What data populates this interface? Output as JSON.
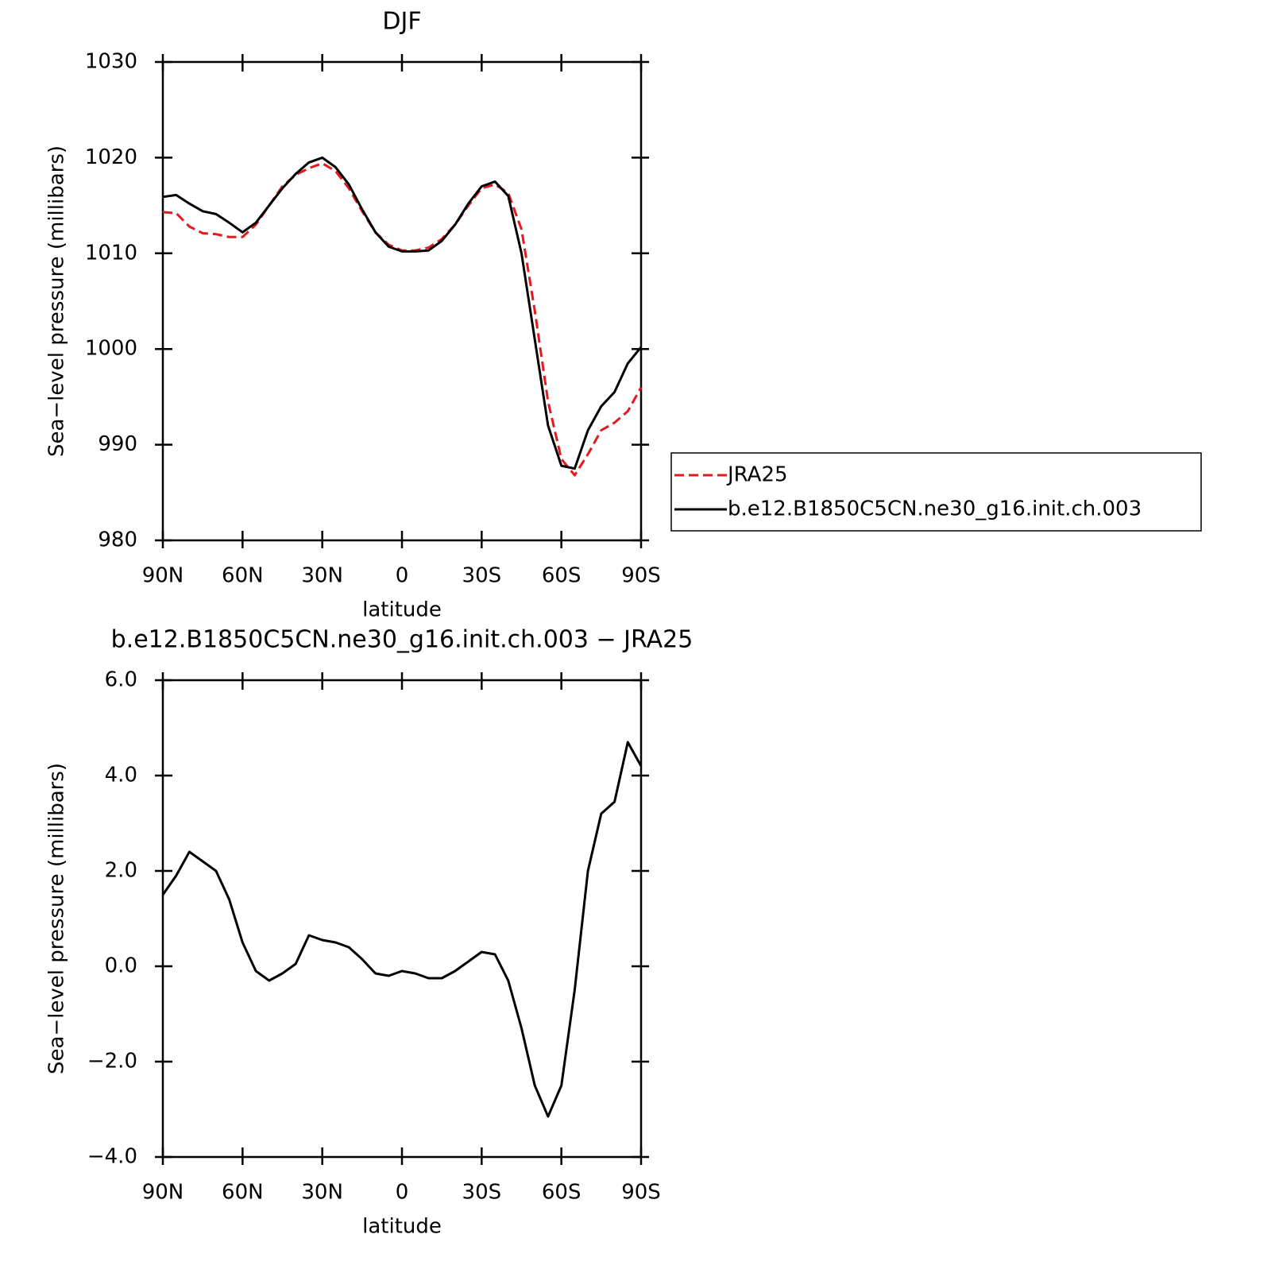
{
  "chart_data": [
    {
      "type": "line",
      "title": "DJF",
      "xlabel": "latitude",
      "ylabel": "Sea−level pressure (millibars)",
      "x": [
        90,
        85,
        80,
        75,
        70,
        65,
        60,
        55,
        50,
        45,
        40,
        35,
        30,
        25,
        20,
        15,
        10,
        5,
        0,
        -5,
        -10,
        -15,
        -20,
        -25,
        -30,
        -35,
        -40,
        -45,
        -50,
        -55,
        -60,
        -65,
        -70,
        -75,
        -80,
        -85,
        -90
      ],
      "series": [
        {
          "name": "JRA25",
          "color": "#e41a1c",
          "dashed": true,
          "values": [
            1014.3,
            1014.2,
            1012.8,
            1012.1,
            1012.0,
            1011.7,
            1011.7,
            1013.0,
            1015.0,
            1017.0,
            1018.2,
            1018.9,
            1019.4,
            1018.6,
            1016.8,
            1014.4,
            1012.2,
            1010.9,
            1010.3,
            1010.3,
            1010.6,
            1011.5,
            1013.0,
            1015.0,
            1016.8,
            1017.2,
            1016.3,
            1012.5,
            1004.0,
            994.5,
            988.5,
            986.8,
            989.0,
            991.5,
            992.3,
            993.5,
            996.0
          ]
        },
        {
          "name": "b.e12.B1850C5CN.ne30_g16.init.ch.003",
          "color": "#000000",
          "dashed": false,
          "values": [
            1015.9,
            1016.1,
            1015.2,
            1014.4,
            1014.1,
            1013.2,
            1012.2,
            1013.2,
            1015.0,
            1016.8,
            1018.3,
            1019.5,
            1020.0,
            1019.0,
            1017.2,
            1014.6,
            1012.2,
            1010.7,
            1010.2,
            1010.2,
            1010.3,
            1011.3,
            1013.0,
            1015.2,
            1017.0,
            1017.5,
            1016.0,
            1010.0,
            1001.0,
            992.0,
            987.8,
            987.5,
            991.5,
            994.0,
            995.5,
            998.5,
            1000.2
          ]
        }
      ],
      "xlim": [
        90,
        -90
      ],
      "xticks": [
        {
          "value": 90,
          "label": "90N"
        },
        {
          "value": 60,
          "label": "60N"
        },
        {
          "value": 30,
          "label": "30N"
        },
        0,
        {
          "value": -30,
          "label": "30S"
        },
        {
          "value": -60,
          "label": "60S"
        },
        {
          "value": -90,
          "label": "90S"
        }
      ],
      "ylim": [
        980,
        1030
      ],
      "yticks": [
        980,
        990,
        1000,
        1010,
        1020,
        1030
      ],
      "legend": "right"
    },
    {
      "type": "line",
      "title": "b.e12.B1850C5CN.ne30_g16.init.ch.003 − JRA25",
      "xlabel": "latitude",
      "ylabel": "Sea−level pressure (millibars)",
      "x": [
        90,
        85,
        80,
        75,
        70,
        65,
        60,
        55,
        50,
        45,
        40,
        35,
        30,
        25,
        20,
        15,
        10,
        5,
        0,
        -5,
        -10,
        -15,
        -20,
        -25,
        -30,
        -35,
        -40,
        -45,
        -50,
        -55,
        -60,
        -65,
        -70,
        -75,
        -80,
        -85,
        -90
      ],
      "series": [
        {
          "color": "#000000",
          "dashed": false,
          "values": [
            1.5,
            1.9,
            2.4,
            2.2,
            2.0,
            1.4,
            0.5,
            -0.1,
            -0.3,
            -0.15,
            0.05,
            0.65,
            0.55,
            0.5,
            0.4,
            0.15,
            -0.15,
            -0.2,
            -0.1,
            -0.15,
            -0.25,
            -0.25,
            -0.1,
            0.1,
            0.3,
            0.25,
            -0.3,
            -1.3,
            -2.5,
            -3.15,
            -2.5,
            -0.5,
            2.0,
            3.2,
            3.45,
            4.7,
            4.2
          ]
        }
      ],
      "xlim": [
        90,
        -90
      ],
      "xticks": [
        {
          "value": 90,
          "label": "90N"
        },
        {
          "value": 60,
          "label": "60N"
        },
        {
          "value": 30,
          "label": "30N"
        },
        0,
        {
          "value": -30,
          "label": "30S"
        },
        {
          "value": -60,
          "label": "60S"
        },
        {
          "value": -90,
          "label": "90S"
        }
      ],
      "ylim": [
        -4,
        6
      ],
      "yticks": [
        {
          "value": -4,
          "label": "−4.0"
        },
        {
          "value": -2,
          "label": "−2.0"
        },
        {
          "value": 0,
          "label": "0.0"
        },
        {
          "value": 2,
          "label": "2.0"
        },
        {
          "value": 4,
          "label": "4.0"
        },
        {
          "value": 6,
          "label": "6.0"
        }
      ]
    }
  ]
}
